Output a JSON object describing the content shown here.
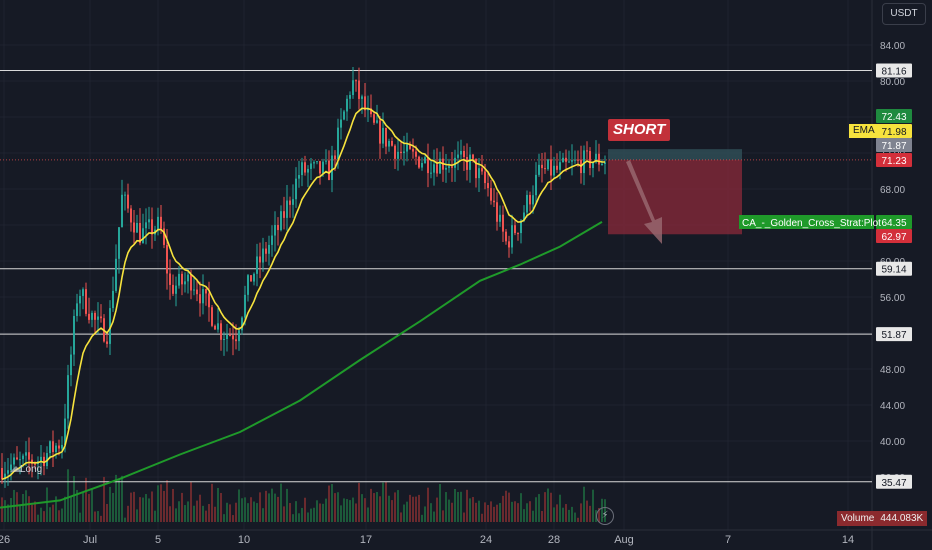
{
  "currency": "USDT",
  "volume_label": "Volume",
  "volume_value": "444.083K",
  "ema_label": "EMA",
  "short_label": "SHORT",
  "long_label": "Long",
  "alert_icon": "lightning-icon",
  "colors": {
    "background": "#161a25",
    "up": "#26a69a",
    "down": "#ef5350",
    "ema": "#f7e33d",
    "sma": "#1f9a2a",
    "stop_zone": "#8b2a3a",
    "target_zone": "#2f4d56"
  },
  "chart_data": {
    "type": "candlestick",
    "x_ticks": [
      "26",
      "Jul",
      "5",
      "10",
      "17",
      "24",
      "28",
      "Aug",
      "7",
      "14"
    ],
    "y_ticks": [
      "84.00",
      "80.00",
      "72.00",
      "68.00",
      "64.00",
      "60.00",
      "56.00",
      "52.00",
      "48.00",
      "44.00",
      "40.00",
      "36.00"
    ],
    "y_range": [
      32,
      86
    ],
    "horizontal_levels": [
      "81.16",
      "59.14",
      "51.87",
      "35.47"
    ],
    "price_labels": [
      {
        "value": "72.43",
        "color": "#1f8a3f"
      },
      {
        "value": "71.98",
        "color": "#f7e33d"
      },
      {
        "value": "71.87",
        "color": "#7f8390"
      },
      {
        "value": "71.23",
        "color": "#d32f3a"
      },
      {
        "value": "64.35",
        "color": "#1f9a2a"
      },
      {
        "value": "62.97",
        "color": "#d32f3a"
      }
    ],
    "indicator_label": "CA_-_Golden_Cross_Strat:Plot",
    "position": {
      "side": "short",
      "entry": 71.23,
      "stop": 72.43,
      "target": 62.97
    },
    "last_close": 71.23
  }
}
